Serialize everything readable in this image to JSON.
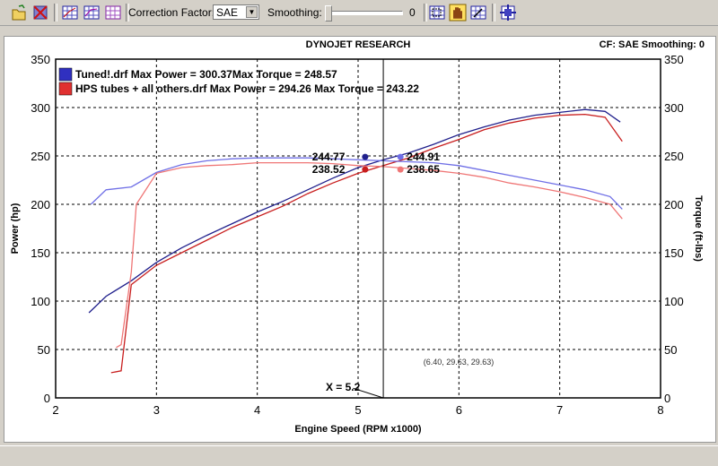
{
  "toolbar": {
    "correction_label": "Correction Factor:",
    "correction_value": "SAE",
    "smoothing_label": "Smoothing:",
    "smoothing_value": "0",
    "icons": [
      "open-file-icon",
      "close-file-icon",
      "graph-view-icon-1",
      "graph-view-icon-2",
      "graph-view-icon-3",
      "zoom-icon",
      "hand-icon",
      "select-zoom-icon",
      "crosshair-icon"
    ]
  },
  "chart_data": {
    "type": "line",
    "title": "DYNOJET RESEARCH",
    "header_right": "CF: SAE  Smoothing: 0",
    "xlabel": "Engine Speed (RPM x1000)",
    "ylabel": "Power (hp)",
    "ylabel_right": "Torque (ft-lbs)",
    "xlim": [
      2,
      8
    ],
    "ylim": [
      0,
      350
    ],
    "ylim_right": [
      0,
      350
    ],
    "xticks": [
      "2",
      "3",
      "4",
      "5",
      "6",
      "7",
      "8"
    ],
    "yticks": [
      "0",
      "50",
      "100",
      "150",
      "200",
      "250",
      "300",
      "350"
    ],
    "grid": true,
    "legend": [
      {
        "text": "Tuned!.drf Max Power = 300.37Max Torque = 248.57",
        "color": "#3030c0"
      },
      {
        "text": "HPS tubes + all others.drf Max Power = 294.26 Max Torque = 243.22",
        "color": "#e03030"
      }
    ],
    "series": [
      {
        "name": "Tuned!.drf",
        "kind": "power",
        "color": "#20208c",
        "x": [
          2.33,
          2.5,
          2.75,
          3.0,
          3.25,
          3.5,
          3.75,
          4.0,
          4.25,
          4.5,
          4.75,
          5.0,
          5.25,
          5.5,
          5.75,
          6.0,
          6.25,
          6.5,
          6.75,
          7.0,
          7.25,
          7.45,
          7.6
        ],
        "y": [
          88,
          105,
          121,
          140,
          155,
          168,
          180,
          192,
          203,
          215,
          227,
          238,
          246,
          253,
          262,
          272,
          280,
          287,
          292,
          295,
          298,
          296,
          285
        ]
      },
      {
        "name": "HPS tubes + all others.drf",
        "kind": "power",
        "color": "#c81e1e",
        "x": [
          2.55,
          2.65,
          2.75,
          3.0,
          3.25,
          3.5,
          3.75,
          4.0,
          4.25,
          4.5,
          4.75,
          5.0,
          5.25,
          5.5,
          5.75,
          6.0,
          6.25,
          6.5,
          6.75,
          7.0,
          7.25,
          7.45,
          7.62
        ],
        "y": [
          26,
          28,
          117,
          137,
          150,
          163,
          176,
          187,
          198,
          211,
          222,
          232,
          240,
          248,
          258,
          267,
          277,
          284,
          289,
          292,
          293,
          290,
          265
        ]
      },
      {
        "name": "Tuned!.drf",
        "kind": "torque",
        "color": "#6f6fe6",
        "x": [
          2.35,
          2.5,
          2.75,
          3.0,
          3.25,
          3.5,
          3.75,
          4.0,
          4.25,
          4.5,
          4.75,
          5.0,
          5.25,
          5.5,
          5.75,
          6.0,
          6.25,
          6.5,
          6.75,
          7.0,
          7.25,
          7.5,
          7.62
        ],
        "y": [
          200,
          215,
          218,
          233,
          241,
          245,
          247,
          248,
          248,
          248,
          247,
          246,
          245,
          244,
          243,
          240,
          235,
          230,
          225,
          220,
          215,
          208,
          195
        ]
      },
      {
        "name": "HPS tubes + all others.drf",
        "kind": "torque",
        "color": "#ef7676",
        "x": [
          2.6,
          2.65,
          2.75,
          2.8,
          3.0,
          3.25,
          3.5,
          3.75,
          4.0,
          4.25,
          4.5,
          4.75,
          5.0,
          5.25,
          5.5,
          5.75,
          6.0,
          6.25,
          6.5,
          6.75,
          7.0,
          7.25,
          7.5,
          7.62
        ],
        "y": [
          52,
          55,
          130,
          200,
          232,
          238,
          240,
          241,
          243,
          243,
          243,
          242,
          240,
          239,
          237,
          235,
          232,
          228,
          222,
          218,
          213,
          207,
          200,
          185
        ]
      }
    ],
    "markers": [
      {
        "x": 5.07,
        "y": 249,
        "color": "#20208c"
      },
      {
        "x": 5.07,
        "y": 236,
        "color": "#c81e1e"
      },
      {
        "x": 5.42,
        "y": 249,
        "color": "#6f6fe6"
      },
      {
        "x": 5.42,
        "y": 236,
        "color": "#ef7676"
      }
    ],
    "marker_labels": [
      {
        "text": "244.77",
        "x": 4.87,
        "y": 249
      },
      {
        "text": "238.52",
        "x": 4.87,
        "y": 236
      },
      {
        "text": "244.91",
        "x": 5.81,
        "y": 249
      },
      {
        "text": "238.65",
        "x": 5.81,
        "y": 236
      }
    ],
    "cursor_x": 5.25,
    "cursor_label": "X = 5.2",
    "coord_readout": "(6.40, 29.63, 29.63)"
  }
}
